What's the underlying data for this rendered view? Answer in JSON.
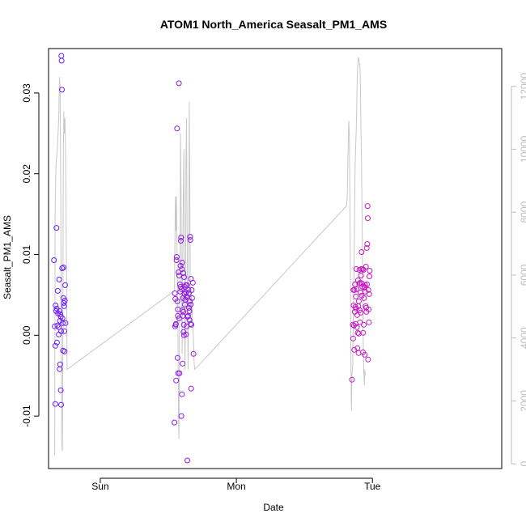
{
  "chart_data": {
    "type": "scatter",
    "title": "ATOM1 North_America Seasalt_PM1_AMS",
    "xlabel": "Date",
    "ylabel": "Seasalt_PM1_AMS",
    "x_ticks": [
      "Sun",
      "Mon",
      "Tue"
    ],
    "y_ticks": [
      "-0.01",
      "0.00",
      "0.01",
      "0.02",
      "0.03"
    ],
    "y2_ticks": [
      "0",
      "2000",
      "4000",
      "6000",
      "8000",
      "10000",
      "12000"
    ],
    "ylim": [
      -0.0165,
      0.0355
    ],
    "y2lim": [
      -150,
      13200
    ],
    "x_range_days": [
      -0.38,
      2.95
    ],
    "grid": false,
    "colors": {
      "early": "#6a1bff",
      "late": "#ee1aa8",
      "secondary_line": "#c8c8c8",
      "axis": "#000000",
      "axis2": "#bdbdbd"
    },
    "series": [
      {
        "axis": "left",
        "points": [
          [
            -0.34,
            0.0093
          ],
          [
            -0.335,
            0.0011
          ],
          [
            -0.33,
            -0.0085
          ],
          [
            -0.33,
            -0.0013
          ],
          [
            -0.328,
            0.0037
          ],
          [
            -0.325,
            0.003
          ],
          [
            -0.322,
            0.0133
          ],
          [
            -0.32,
            0.0033
          ],
          [
            -0.318,
            -0.0009
          ],
          [
            -0.315,
            0.0012
          ],
          [
            -0.312,
            0.0055
          ],
          [
            -0.31,
            0.0027
          ],
          [
            -0.305,
            0.001
          ],
          [
            -0.302,
            0.0069
          ],
          [
            -0.3,
            0.003
          ],
          [
            -0.298,
            -0.0042
          ],
          [
            -0.295,
            -0.0036
          ],
          [
            -0.293,
            0.0026
          ],
          [
            -0.29,
            0.0023
          ],
          [
            -0.288,
            0.0005
          ],
          [
            -0.286,
            0.0346
          ],
          [
            -0.284,
            0.034
          ],
          [
            -0.282,
            0.0304
          ],
          [
            -0.28,
            0.0083
          ],
          [
            -0.278,
            0.0021
          ],
          [
            -0.276,
            0.0015
          ],
          [
            -0.274,
            -0.0019
          ],
          [
            -0.272,
            0.0046
          ],
          [
            -0.27,
            0.0084
          ],
          [
            -0.268,
            0.004
          ],
          [
            -0.266,
            0.0036
          ],
          [
            -0.264,
            0.0005
          ],
          [
            -0.262,
            -0.002
          ],
          [
            -0.26,
            0.0043
          ],
          [
            -0.258,
            0.0062
          ],
          [
            -0.256,
            0.0015
          ],
          [
            -0.29,
            -0.0068
          ],
          [
            -0.288,
            -0.0086
          ],
          [
            -0.296,
            0.0018
          ],
          [
            -0.305,
            0.0001
          ],
          [
            0.545,
            -0.0108
          ],
          [
            0.548,
            0.0052
          ],
          [
            0.55,
            0.0011
          ],
          [
            0.552,
            0.0045
          ],
          [
            0.554,
            0.0013
          ],
          [
            0.556,
            0.0014
          ],
          [
            0.558,
            -0.0056
          ],
          [
            0.56,
            0.0093
          ],
          [
            0.562,
            0.0097
          ],
          [
            0.564,
            0.0256
          ],
          [
            0.566,
            0.0042
          ],
          [
            0.568,
            -0.0028
          ],
          [
            0.57,
            0.0032
          ],
          [
            0.572,
            -0.0047
          ],
          [
            0.575,
            0.0078
          ],
          [
            0.578,
            0.0312
          ],
          [
            0.58,
            0.0074
          ],
          [
            0.582,
            -0.0047
          ],
          [
            0.585,
            0.0063
          ],
          [
            0.588,
            0.0054
          ],
          [
            0.59,
            0.0086
          ],
          [
            0.592,
            0.0117
          ],
          [
            0.594,
            0.0121
          ],
          [
            0.596,
            -0.01
          ],
          [
            0.598,
            0.0057
          ],
          [
            0.6,
            -0.0073
          ],
          [
            0.602,
            0.009
          ],
          [
            0.604,
            0.0031
          ],
          [
            0.606,
            0.0024
          ],
          [
            0.608,
            0.0046
          ],
          [
            0.61,
            0.0077
          ],
          [
            0.612,
            0.0004
          ],
          [
            0.614,
            0.0013
          ],
          [
            0.616,
            0.0072
          ],
          [
            0.62,
            0.006
          ],
          [
            0.622,
            0.0038
          ],
          [
            0.625,
            0.0044
          ],
          [
            0.628,
            0.0062
          ],
          [
            0.63,
            0.0053
          ],
          [
            0.632,
            0.0048
          ],
          [
            0.635,
            0.0011
          ],
          [
            0.638,
            0.0062
          ],
          [
            0.64,
            -0.0155
          ],
          [
            0.642,
            0.0023
          ],
          [
            0.645,
            0.0024
          ],
          [
            0.648,
            0.0056
          ],
          [
            0.65,
            0.0052
          ],
          [
            0.652,
            0.0034
          ],
          [
            0.655,
            0.003
          ],
          [
            0.658,
            0.0042
          ],
          [
            0.66,
            0.0122
          ],
          [
            0.662,
            0.0118
          ],
          [
            0.664,
            0.0014
          ],
          [
            0.666,
            0.007
          ],
          [
            0.668,
            -0.0066
          ],
          [
            0.67,
            0.0013
          ],
          [
            0.672,
            0.0056
          ],
          [
            0.675,
            0.0046
          ],
          [
            0.68,
            0.0065
          ],
          [
            0.685,
            -0.0023
          ],
          [
            0.605,
            -0.0035
          ],
          [
            0.61,
            0.0029
          ],
          [
            0.63,
            0.0001
          ],
          [
            0.615,
            0.0
          ],
          [
            0.58,
            0.0021
          ],
          [
            0.59,
            0.006
          ],
          [
            0.6,
            0.0082
          ],
          [
            0.62,
            0.0051
          ],
          [
            0.64,
            0.0047
          ],
          [
            0.57,
            0.0024
          ],
          [
            0.655,
            0.0019
          ],
          [
            0.665,
            0.0038
          ],
          [
            1.85,
            -0.0055
          ],
          [
            1.855,
            0.0013
          ],
          [
            1.858,
            -0.0004
          ],
          [
            1.86,
            0.0056
          ],
          [
            1.862,
            0.0037
          ],
          [
            1.864,
            0.0012
          ],
          [
            1.866,
            -0.0018
          ],
          [
            1.868,
            0.0056
          ],
          [
            1.87,
            0.0029
          ],
          [
            1.872,
            0.0063
          ],
          [
            1.874,
            0.0035
          ],
          [
            1.876,
            0.0014
          ],
          [
            1.878,
            0.0048
          ],
          [
            1.88,
            0.0033
          ],
          [
            1.882,
            0.0082
          ],
          [
            1.884,
            0.0057
          ],
          [
            1.886,
            0.001
          ],
          [
            1.888,
            0.0025
          ],
          [
            1.89,
            -0.0016
          ],
          [
            1.892,
            0.0003
          ],
          [
            1.894,
            0.0068
          ],
          [
            1.896,
            0.0036
          ],
          [
            1.898,
            -0.0022
          ],
          [
            1.9,
            0.0042
          ],
          [
            1.902,
            0.0064
          ],
          [
            1.904,
            0.0081
          ],
          [
            1.906,
            0.0031
          ],
          [
            1.908,
            0.0016
          ],
          [
            1.91,
            0.0065
          ],
          [
            1.912,
            0.0053
          ],
          [
            1.914,
            0.0028
          ],
          [
            1.916,
            0.0074
          ],
          [
            1.918,
            0.0082
          ],
          [
            1.92,
            0.0103
          ],
          [
            1.922,
            0.0049
          ],
          [
            1.924,
            0.0064
          ],
          [
            1.926,
            0.006
          ],
          [
            1.928,
            0.0082
          ],
          [
            1.93,
            -0.0021
          ],
          [
            1.932,
            0.0003
          ],
          [
            1.934,
            0.0081
          ],
          [
            1.936,
            0.0013
          ],
          [
            1.938,
            0.0046
          ],
          [
            1.94,
            0.006
          ],
          [
            1.942,
            0.0059
          ],
          [
            1.944,
            -0.0024
          ],
          [
            1.946,
            0.0062
          ],
          [
            1.948,
            0.0054
          ],
          [
            1.95,
            0.0036
          ],
          [
            1.952,
            0.0085
          ],
          [
            1.954,
            0.0034
          ],
          [
            1.956,
            0.0029
          ],
          [
            1.958,
            0.0108
          ],
          [
            1.96,
            0.0063
          ],
          [
            1.962,
            0.0113
          ],
          [
            1.964,
            0.016
          ],
          [
            1.966,
            0.0145
          ],
          [
            1.968,
            -0.003
          ],
          [
            1.97,
            0.0056
          ],
          [
            1.972,
            0.0032
          ],
          [
            1.974,
            0.0016
          ],
          [
            1.976,
            0.0051
          ],
          [
            1.978,
            0.0073
          ],
          [
            1.98,
            0.008
          ],
          [
            1.9,
            0.0002
          ]
        ]
      },
      {
        "axis": "right",
        "points": [
          [
            -0.34,
            300
          ],
          [
            -0.335,
            300
          ],
          [
            -0.332,
            8000
          ],
          [
            -0.325,
            9500
          ],
          [
            -0.315,
            10000
          ],
          [
            -0.305,
            11000
          ],
          [
            -0.3,
            12300
          ],
          [
            -0.295,
            11900
          ],
          [
            -0.29,
            8500
          ],
          [
            -0.285,
            3000
          ],
          [
            -0.282,
            600
          ],
          [
            -0.279,
            400
          ],
          [
            -0.276,
            2500
          ],
          [
            -0.272,
            9500
          ],
          [
            -0.268,
            11200
          ],
          [
            -0.264,
            10500
          ],
          [
            -0.26,
            11000
          ],
          [
            -0.256,
            10200
          ],
          [
            -0.252,
            8500
          ],
          [
            -0.248,
            6000
          ],
          [
            -0.244,
            3000
          ],
          [
            0.545,
            5500
          ],
          [
            0.552,
            8500
          ],
          [
            0.556,
            7400
          ],
          [
            0.56,
            8500
          ],
          [
            0.565,
            6500
          ],
          [
            0.57,
            4500
          ],
          [
            0.575,
            1500
          ],
          [
            0.578,
            800
          ],
          [
            0.582,
            4000
          ],
          [
            0.586,
            6500
          ],
          [
            0.59,
            10500
          ],
          [
            0.594,
            8500
          ],
          [
            0.598,
            5000
          ],
          [
            0.602,
            3500
          ],
          [
            0.606,
            6500
          ],
          [
            0.61,
            8500
          ],
          [
            0.614,
            10000
          ],
          [
            0.618,
            6000
          ],
          [
            0.622,
            3000
          ],
          [
            0.626,
            4500
          ],
          [
            0.63,
            9500
          ],
          [
            0.634,
            11000
          ],
          [
            0.638,
            7500
          ],
          [
            0.642,
            4500
          ],
          [
            0.646,
            3000
          ],
          [
            0.65,
            6500
          ],
          [
            0.654,
            11500
          ],
          [
            0.658,
            8500
          ],
          [
            0.662,
            5000
          ],
          [
            0.666,
            4500
          ],
          [
            0.67,
            5500
          ],
          [
            0.674,
            5000
          ],
          [
            0.678,
            4500
          ],
          [
            0.682,
            4200
          ],
          [
            0.686,
            3800
          ],
          [
            0.69,
            3200
          ],
          [
            0.695,
            3000
          ],
          [
            1.81,
            8200
          ],
          [
            1.815,
            8500
          ],
          [
            1.82,
            9800
          ],
          [
            1.826,
            10900
          ],
          [
            1.83,
            10500
          ],
          [
            1.834,
            8500
          ],
          [
            1.838,
            6000
          ],
          [
            1.842,
            3000
          ],
          [
            1.846,
            1700
          ],
          [
            1.85,
            2800
          ],
          [
            1.855,
            3200
          ],
          [
            1.86,
            5000
          ],
          [
            1.865,
            6000
          ],
          [
            1.868,
            7500
          ],
          [
            1.872,
            9300
          ],
          [
            1.876,
            10000
          ],
          [
            1.88,
            10500
          ],
          [
            1.884,
            11200
          ],
          [
            1.888,
            12200
          ],
          [
            1.892,
            12700
          ],
          [
            1.896,
            12900
          ],
          [
            1.9,
            12900
          ],
          [
            1.904,
            12700
          ],
          [
            1.908,
            12700
          ],
          [
            1.912,
            12000
          ],
          [
            1.916,
            10500
          ],
          [
            1.92,
            9500
          ],
          [
            1.924,
            7500
          ],
          [
            1.928,
            5500
          ],
          [
            1.932,
            4000
          ],
          [
            1.936,
            3000
          ],
          [
            1.94,
            2500
          ],
          [
            1.944,
            3000
          ],
          [
            1.948,
            2800
          ]
        ]
      }
    ]
  }
}
